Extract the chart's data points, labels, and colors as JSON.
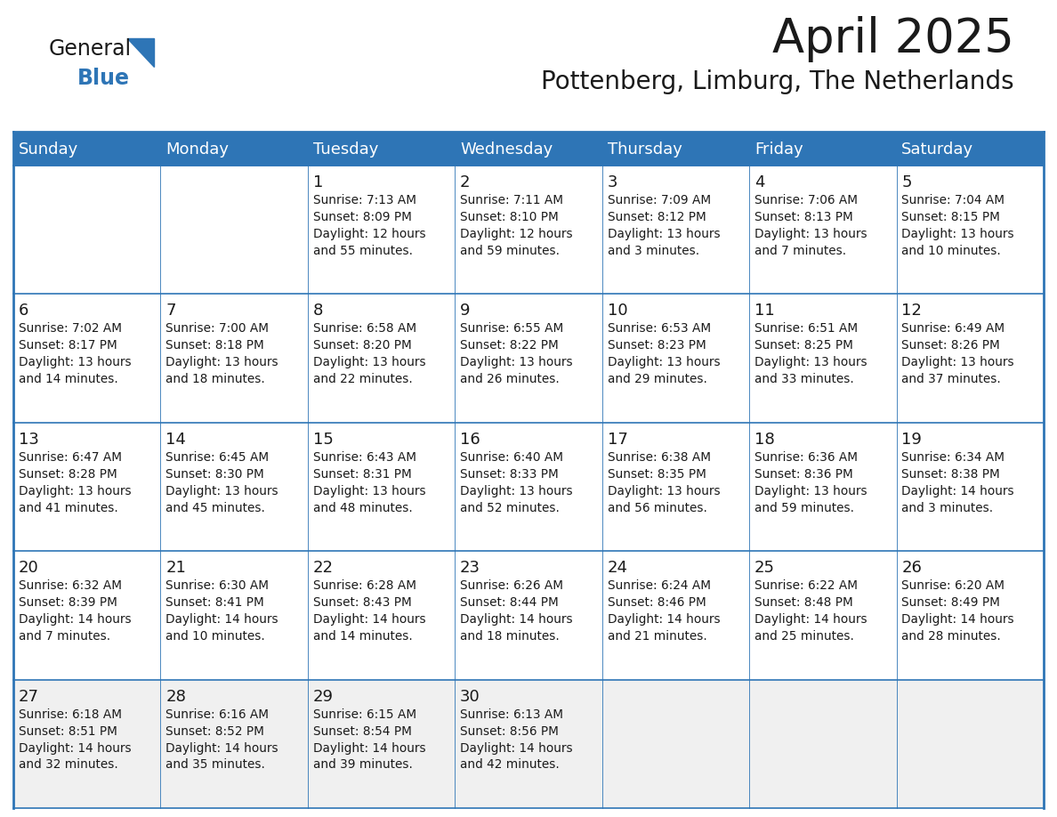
{
  "title": "April 2025",
  "subtitle": "Pottenberg, Limburg, The Netherlands",
  "header_bg": "#2E75B6",
  "header_text_color": "#FFFFFF",
  "cell_bg": "#FFFFFF",
  "last_row_bg": "#F0F0F0",
  "border_color": "#2E75B6",
  "day_headers": [
    "Sunday",
    "Monday",
    "Tuesday",
    "Wednesday",
    "Thursday",
    "Friday",
    "Saturday"
  ],
  "title_fontsize": 38,
  "subtitle_fontsize": 20,
  "header_fontsize": 13,
  "day_num_fontsize": 13,
  "cell_fontsize": 9.8,
  "logo_general_color": "#1a1a1a",
  "logo_blue_color": "#2E75B6",
  "logo_triangle_color": "#2E75B6",
  "calendar": [
    [
      {
        "day": "",
        "info": ""
      },
      {
        "day": "",
        "info": ""
      },
      {
        "day": "1",
        "info": "Sunrise: 7:13 AM\nSunset: 8:09 PM\nDaylight: 12 hours\nand 55 minutes."
      },
      {
        "day": "2",
        "info": "Sunrise: 7:11 AM\nSunset: 8:10 PM\nDaylight: 12 hours\nand 59 minutes."
      },
      {
        "day": "3",
        "info": "Sunrise: 7:09 AM\nSunset: 8:12 PM\nDaylight: 13 hours\nand 3 minutes."
      },
      {
        "day": "4",
        "info": "Sunrise: 7:06 AM\nSunset: 8:13 PM\nDaylight: 13 hours\nand 7 minutes."
      },
      {
        "day": "5",
        "info": "Sunrise: 7:04 AM\nSunset: 8:15 PM\nDaylight: 13 hours\nand 10 minutes."
      }
    ],
    [
      {
        "day": "6",
        "info": "Sunrise: 7:02 AM\nSunset: 8:17 PM\nDaylight: 13 hours\nand 14 minutes."
      },
      {
        "day": "7",
        "info": "Sunrise: 7:00 AM\nSunset: 8:18 PM\nDaylight: 13 hours\nand 18 minutes."
      },
      {
        "day": "8",
        "info": "Sunrise: 6:58 AM\nSunset: 8:20 PM\nDaylight: 13 hours\nand 22 minutes."
      },
      {
        "day": "9",
        "info": "Sunrise: 6:55 AM\nSunset: 8:22 PM\nDaylight: 13 hours\nand 26 minutes."
      },
      {
        "day": "10",
        "info": "Sunrise: 6:53 AM\nSunset: 8:23 PM\nDaylight: 13 hours\nand 29 minutes."
      },
      {
        "day": "11",
        "info": "Sunrise: 6:51 AM\nSunset: 8:25 PM\nDaylight: 13 hours\nand 33 minutes."
      },
      {
        "day": "12",
        "info": "Sunrise: 6:49 AM\nSunset: 8:26 PM\nDaylight: 13 hours\nand 37 minutes."
      }
    ],
    [
      {
        "day": "13",
        "info": "Sunrise: 6:47 AM\nSunset: 8:28 PM\nDaylight: 13 hours\nand 41 minutes."
      },
      {
        "day": "14",
        "info": "Sunrise: 6:45 AM\nSunset: 8:30 PM\nDaylight: 13 hours\nand 45 minutes."
      },
      {
        "day": "15",
        "info": "Sunrise: 6:43 AM\nSunset: 8:31 PM\nDaylight: 13 hours\nand 48 minutes."
      },
      {
        "day": "16",
        "info": "Sunrise: 6:40 AM\nSunset: 8:33 PM\nDaylight: 13 hours\nand 52 minutes."
      },
      {
        "day": "17",
        "info": "Sunrise: 6:38 AM\nSunset: 8:35 PM\nDaylight: 13 hours\nand 56 minutes."
      },
      {
        "day": "18",
        "info": "Sunrise: 6:36 AM\nSunset: 8:36 PM\nDaylight: 13 hours\nand 59 minutes."
      },
      {
        "day": "19",
        "info": "Sunrise: 6:34 AM\nSunset: 8:38 PM\nDaylight: 14 hours\nand 3 minutes."
      }
    ],
    [
      {
        "day": "20",
        "info": "Sunrise: 6:32 AM\nSunset: 8:39 PM\nDaylight: 14 hours\nand 7 minutes."
      },
      {
        "day": "21",
        "info": "Sunrise: 6:30 AM\nSunset: 8:41 PM\nDaylight: 14 hours\nand 10 minutes."
      },
      {
        "day": "22",
        "info": "Sunrise: 6:28 AM\nSunset: 8:43 PM\nDaylight: 14 hours\nand 14 minutes."
      },
      {
        "day": "23",
        "info": "Sunrise: 6:26 AM\nSunset: 8:44 PM\nDaylight: 14 hours\nand 18 minutes."
      },
      {
        "day": "24",
        "info": "Sunrise: 6:24 AM\nSunset: 8:46 PM\nDaylight: 14 hours\nand 21 minutes."
      },
      {
        "day": "25",
        "info": "Sunrise: 6:22 AM\nSunset: 8:48 PM\nDaylight: 14 hours\nand 25 minutes."
      },
      {
        "day": "26",
        "info": "Sunrise: 6:20 AM\nSunset: 8:49 PM\nDaylight: 14 hours\nand 28 minutes."
      }
    ],
    [
      {
        "day": "27",
        "info": "Sunrise: 6:18 AM\nSunset: 8:51 PM\nDaylight: 14 hours\nand 32 minutes."
      },
      {
        "day": "28",
        "info": "Sunrise: 6:16 AM\nSunset: 8:52 PM\nDaylight: 14 hours\nand 35 minutes."
      },
      {
        "day": "29",
        "info": "Sunrise: 6:15 AM\nSunset: 8:54 PM\nDaylight: 14 hours\nand 39 minutes."
      },
      {
        "day": "30",
        "info": "Sunrise: 6:13 AM\nSunset: 8:56 PM\nDaylight: 14 hours\nand 42 minutes."
      },
      {
        "day": "",
        "info": ""
      },
      {
        "day": "",
        "info": ""
      },
      {
        "day": "",
        "info": ""
      }
    ]
  ]
}
